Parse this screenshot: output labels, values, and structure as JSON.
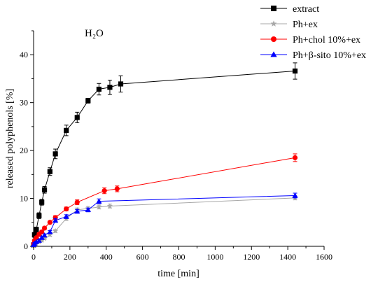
{
  "chart_data": {
    "type": "line",
    "annotation": "H₂O",
    "xlabel": "time [min]",
    "ylabel": "released polyphenols [%]",
    "xlim": [
      0,
      1600
    ],
    "ylim": [
      0,
      45
    ],
    "xticks": [
      0,
      200,
      400,
      600,
      800,
      1000,
      1200,
      1400,
      1600
    ],
    "yticks": [
      0,
      10,
      20,
      30,
      40
    ],
    "grid": false,
    "legend_position": "top-right",
    "series": [
      {
        "name": "extract",
        "color": "#000000",
        "marker": "square",
        "x": [
          0,
          5,
          15,
          30,
          45,
          60,
          90,
          120,
          180,
          240,
          300,
          360,
          420,
          480,
          1440
        ],
        "y": [
          0.3,
          2.4,
          3.5,
          6.4,
          9.2,
          11.8,
          15.6,
          19.3,
          24.2,
          26.9,
          30.4,
          32.8,
          33.2,
          33.9,
          36.6
        ],
        "err": [
          0.3,
          0.5,
          0.5,
          0.6,
          0.6,
          0.7,
          0.8,
          1.0,
          1.1,
          1.1,
          0.5,
          1.2,
          1.5,
          1.7,
          1.7
        ]
      },
      {
        "name": "Ph+ex",
        "color": "#a8a8a8",
        "marker": "star",
        "x": [
          0,
          5,
          15,
          30,
          45,
          60,
          90,
          120,
          180,
          240,
          300,
          360,
          420,
          1440
        ],
        "y": [
          0.2,
          0.4,
          0.6,
          0.9,
          1.2,
          1.6,
          2.4,
          3.2,
          5.8,
          7.6,
          7.9,
          8.2,
          8.4,
          10.1
        ],
        "err": [
          0.1,
          0.1,
          0.1,
          0.2,
          0.2,
          0.2,
          0.3,
          0.3,
          0.4,
          0.4,
          0.4,
          0.4,
          0.4,
          0.4
        ]
      },
      {
        "name": "Ph+chol 10%+ex",
        "color": "#ff0000",
        "marker": "circle",
        "x": [
          0,
          5,
          15,
          30,
          45,
          60,
          90,
          120,
          180,
          240,
          390,
          460,
          1440
        ],
        "y": [
          0.5,
          1.2,
          1.8,
          2.5,
          3.0,
          3.8,
          5.0,
          6.0,
          7.8,
          9.2,
          11.6,
          12.0,
          18.5
        ],
        "err": [
          0.2,
          0.2,
          0.2,
          0.3,
          0.3,
          0.3,
          0.3,
          0.4,
          0.4,
          0.5,
          0.6,
          0.6,
          0.8
        ]
      },
      {
        "name": "Ph+β-sito 10%+ex",
        "color": "#0000ff",
        "marker": "triangle",
        "x": [
          0,
          5,
          15,
          30,
          45,
          60,
          90,
          120,
          180,
          240,
          300,
          360,
          1440
        ],
        "y": [
          0.3,
          0.6,
          0.9,
          1.2,
          1.8,
          2.3,
          3.0,
          5.4,
          6.2,
          7.3,
          7.6,
          9.4,
          10.6
        ],
        "err": [
          0.2,
          0.2,
          0.2,
          0.2,
          0.2,
          0.3,
          0.3,
          0.4,
          0.4,
          0.4,
          0.4,
          0.5,
          0.5
        ]
      }
    ]
  }
}
